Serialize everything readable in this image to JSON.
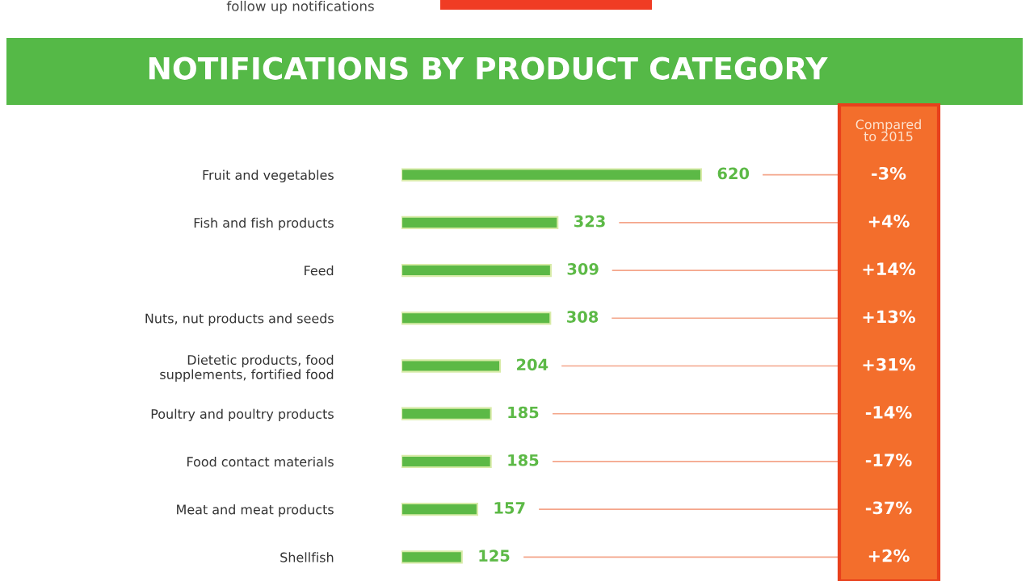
{
  "chart_data": {
    "type": "bar",
    "orientation": "horizontal",
    "title": "NOTIFICATIONS BY PRODUCT CATEGORY",
    "categories": [
      "Fruit and vegetables",
      "Fish and fish products",
      "Feed",
      "Nuts, nut products and seeds",
      "Dietetic products, food\nsupplements, fortified food",
      "Poultry and poultry products",
      "Food contact materials",
      "Meat and meat products",
      "Shellfish"
    ],
    "values": [
      620,
      323,
      309,
      308,
      204,
      185,
      185,
      157,
      125
    ],
    "color": "#5cb946",
    "data_labels": true,
    "tick_labels": "y",
    "grid": false,
    "annotations": [
      "follow up notifications",
      "Compared\nto 2015",
      "-3%",
      "+4%",
      "+14%",
      "+13%",
      "+31%",
      "-14%",
      "-17%",
      "-37%",
      "+2%"
    ]
  }
}
